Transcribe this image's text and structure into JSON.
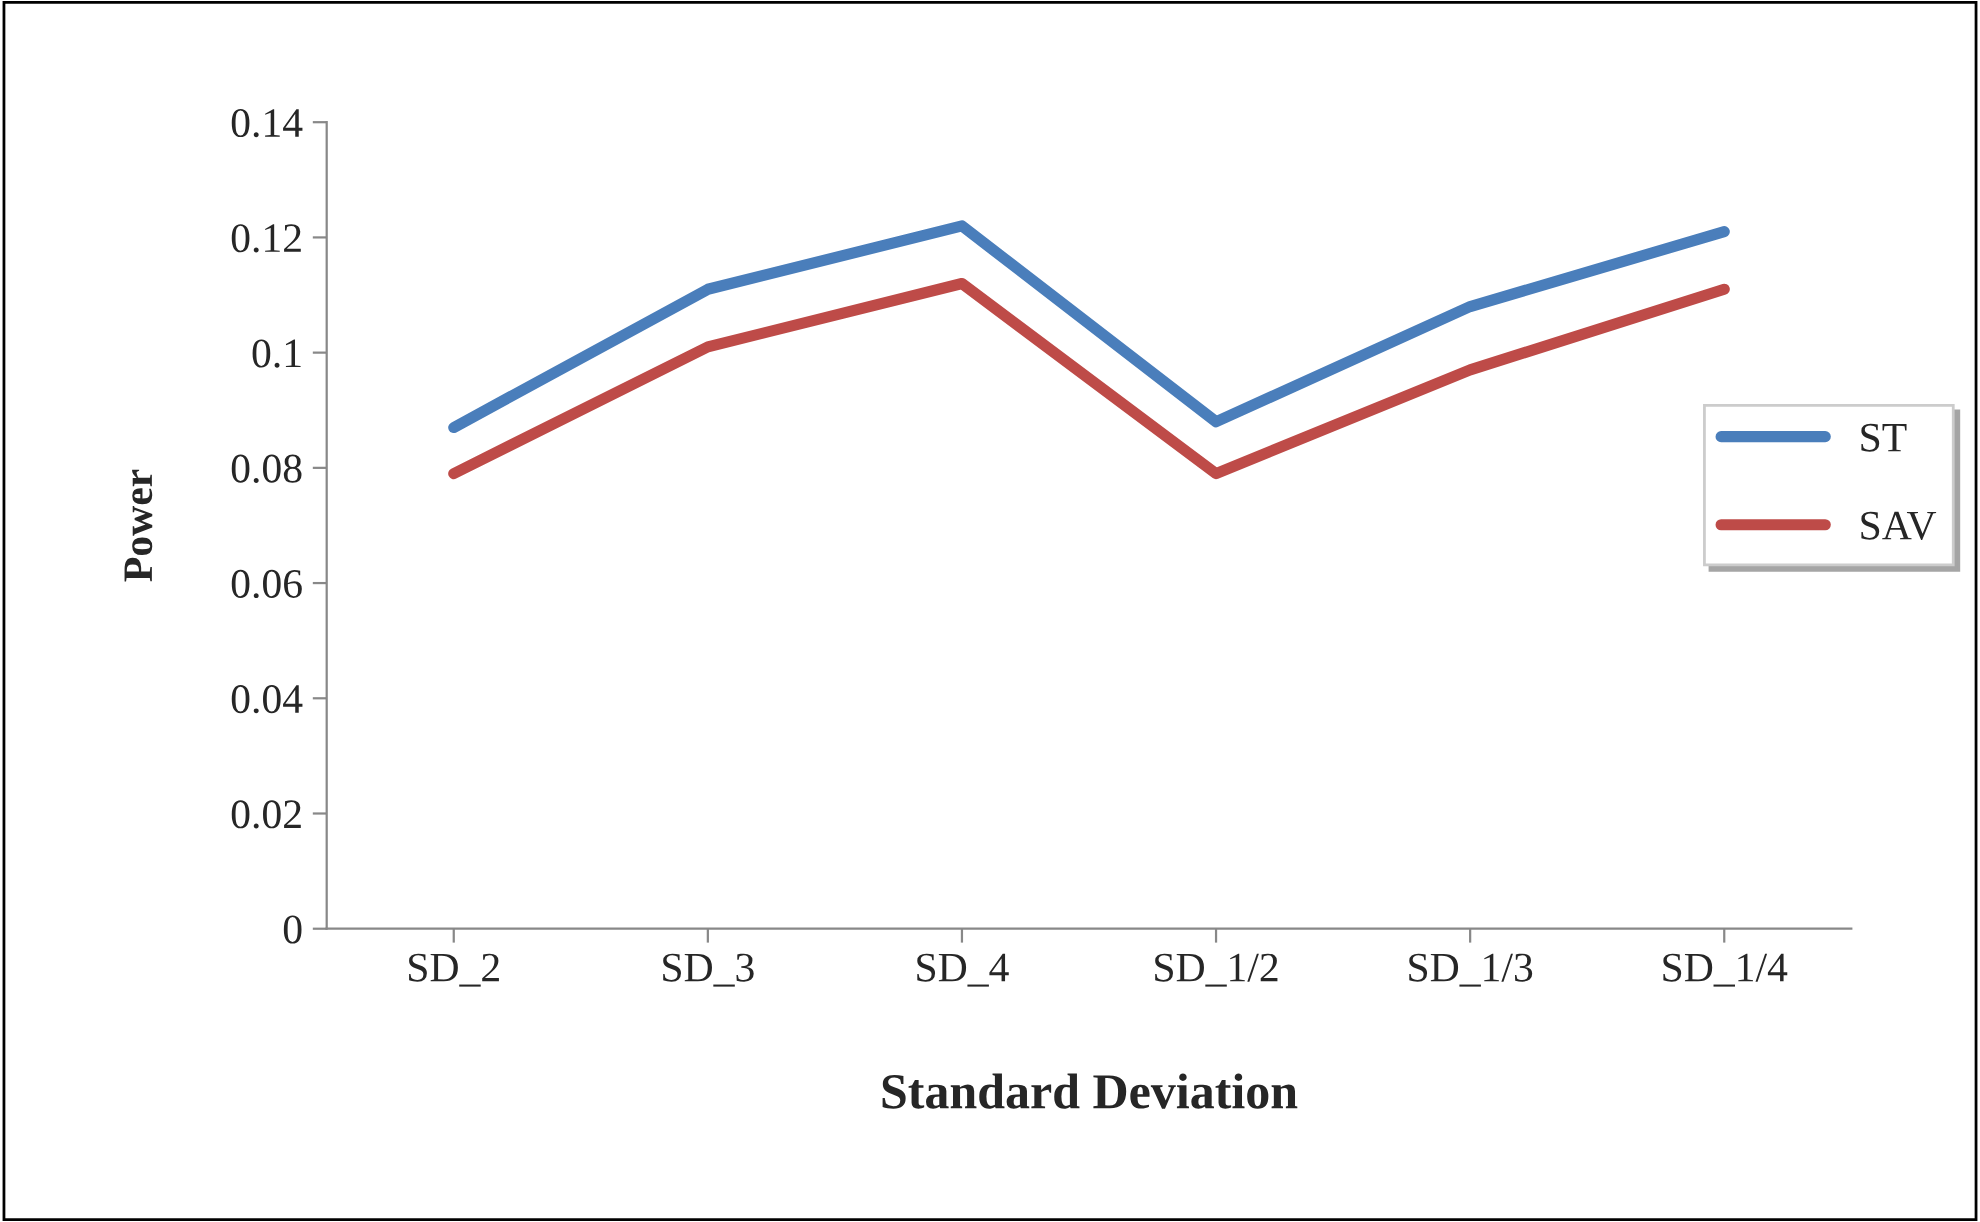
{
  "chart_data": {
    "type": "line",
    "xlabel": "Standard Deviation",
    "ylabel": "Power",
    "categories": [
      "SD_2",
      "SD_3",
      "SD_4",
      "SD_1/2",
      "SD_1/3",
      "SD_1/4"
    ],
    "series": [
      {
        "name": "ST",
        "color": "#4a7ebb",
        "values": [
          0.087,
          0.111,
          0.122,
          0.088,
          0.108,
          0.121
        ]
      },
      {
        "name": "SAV",
        "color": "#be4b48",
        "values": [
          0.079,
          0.101,
          0.112,
          0.079,
          0.097,
          0.111
        ]
      }
    ],
    "ylim": [
      0,
      0.14
    ],
    "yticks": [
      {
        "value": 0,
        "label": "0"
      },
      {
        "value": 0.02,
        "label": "0.02"
      },
      {
        "value": 0.04,
        "label": "0.04"
      },
      {
        "value": 0.06,
        "label": "0.06"
      },
      {
        "value": 0.08,
        "label": "0.08"
      },
      {
        "value": 0.1,
        "label": "0.1"
      },
      {
        "value": 0.12,
        "label": "0.12"
      },
      {
        "value": 0.14,
        "label": "0.14"
      }
    ],
    "grid": false,
    "legend": "right",
    "marker": "none",
    "line_style": "solid"
  }
}
